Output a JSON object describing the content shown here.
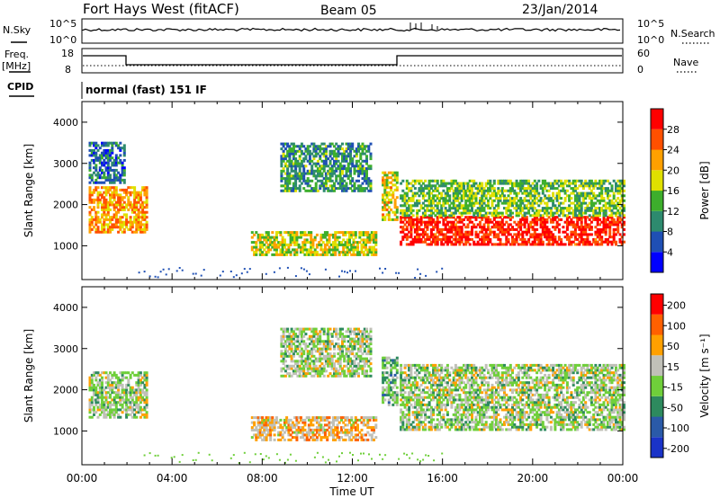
{
  "header": {
    "title": "Fort Hays West (fitACF)",
    "beam": "Beam 05",
    "date": "23/Jan/2014"
  },
  "top_panels": {
    "nsky_label": "N.Sky",
    "nsearch_label": "N.Search",
    "noise_ticks": [
      "10^5",
      "10^0"
    ],
    "freq_label_1": "Freq.",
    "freq_label_2": "[MHz]",
    "freq_ticks": [
      "18",
      "8"
    ],
    "nave_label": "Nave",
    "nave_ticks": [
      "60",
      "0"
    ],
    "cpid_label": "CPID",
    "cpid_value": "normal (fast) 151 IF"
  },
  "chart_data": [
    {
      "type": "heatmap",
      "name": "power",
      "ylabel": "Slant Range [km]",
      "xlabel": "",
      "yticks": [
        1000,
        2000,
        3000,
        4000
      ],
      "ylim": [
        180,
        4500
      ],
      "xlim": [
        0,
        24
      ],
      "colorbar_label": "Power [dB]",
      "colorbar_ticks": [
        4,
        8,
        12,
        16,
        20,
        24,
        28
      ],
      "colorbar_range": [
        0,
        32
      ],
      "colors": [
        "#0000ff",
        "#1f4fb4",
        "#2d8a6e",
        "#3dae2c",
        "#e0e000",
        "#ffa000",
        "#ff5000",
        "#ff0000"
      ],
      "regions": [
        {
          "t0": 0.3,
          "t1": 2.9,
          "r0": 1300,
          "r1": 2400,
          "level": 0.7
        },
        {
          "t0": 0.3,
          "t1": 1.9,
          "r0": 2500,
          "r1": 3500,
          "level": 0.25
        },
        {
          "t0": 7.5,
          "t1": 13.0,
          "r0": 750,
          "r1": 1300,
          "level": 0.55
        },
        {
          "t0": 8.8,
          "t1": 12.8,
          "r0": 2300,
          "r1": 3500,
          "level": 0.35
        },
        {
          "t0": 13.3,
          "t1": 14.0,
          "r0": 1600,
          "r1": 2800,
          "level": 0.6
        },
        {
          "t0": 14.1,
          "t1": 24.0,
          "r0": 1000,
          "r1": 1700,
          "level": 0.92
        },
        {
          "t0": 14.1,
          "t1": 24.0,
          "r0": 1700,
          "r1": 2600,
          "level": 0.45
        }
      ]
    },
    {
      "type": "heatmap",
      "name": "velocity",
      "ylabel": "Slant Range [km]",
      "xlabel": "Time UT",
      "yticks": [
        1000,
        2000,
        3000,
        4000
      ],
      "ylim": [
        180,
        4500
      ],
      "xlim": [
        0,
        24
      ],
      "xticks": [
        "00:00",
        "04:00",
        "08:00",
        "12:00",
        "16:00",
        "20:00",
        "00:00"
      ],
      "colorbar_label": "Velocity [m s⁻¹]",
      "colorbar_ticks": [
        200,
        100,
        50,
        15,
        -15,
        -50,
        -100,
        -200
      ],
      "colors": [
        "#1a33c8",
        "#2a5aa8",
        "#2d8a5e",
        "#6fcf3a",
        "#c0c0b8",
        "#ffa000",
        "#ff6000",
        "#ff0000"
      ],
      "regions": [
        {
          "t0": 0.3,
          "t1": 2.9,
          "r0": 1300,
          "r1": 2400,
          "level": 0.5
        },
        {
          "t0": 7.5,
          "t1": 13.0,
          "r0": 750,
          "r1": 1300,
          "level": 0.65
        },
        {
          "t0": 8.8,
          "t1": 12.8,
          "r0": 2300,
          "r1": 3500,
          "level": 0.5
        },
        {
          "t0": 13.3,
          "t1": 14.0,
          "r0": 1600,
          "r1": 2800,
          "level": 0.4
        },
        {
          "t0": 14.1,
          "t1": 24.0,
          "r0": 1000,
          "r1": 2600,
          "level": 0.5
        }
      ]
    }
  ]
}
